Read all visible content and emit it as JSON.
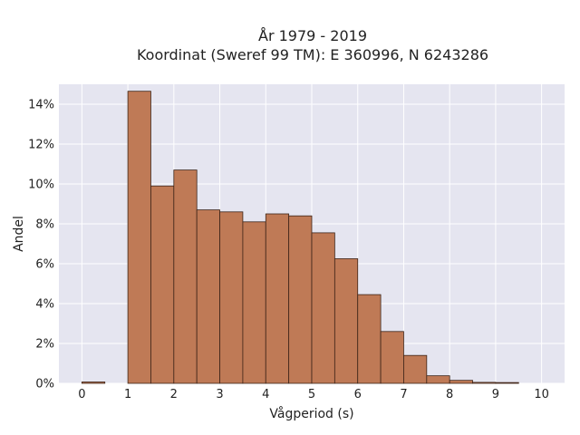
{
  "chart_data": {
    "type": "bar",
    "title_line1": "År 1979 - 2019",
    "title_line2": "Koordinat (Sweref 99 TM): E 360996, N 6243286",
    "xlabel": "Vågperiod (s)",
    "ylabel": "Andel",
    "x_ticks": [
      "0",
      "1",
      "2",
      "3",
      "4",
      "5",
      "6",
      "7",
      "8",
      "9",
      "10"
    ],
    "y_ticks": [
      "0%",
      "2%",
      "4%",
      "6%",
      "8%",
      "10%",
      "12%",
      "14%"
    ],
    "xlim": [
      -0.5,
      10.5
    ],
    "ylim": [
      0,
      15
    ],
    "bin_width": 0.5,
    "bins": [
      {
        "x0": 0.0,
        "value": 0.07
      },
      {
        "x0": 1.0,
        "value": 14.65
      },
      {
        "x0": 1.5,
        "value": 9.9
      },
      {
        "x0": 2.0,
        "value": 10.7
      },
      {
        "x0": 2.5,
        "value": 8.7
      },
      {
        "x0": 3.0,
        "value": 8.6
      },
      {
        "x0": 3.5,
        "value": 8.1
      },
      {
        "x0": 4.0,
        "value": 8.5
      },
      {
        "x0": 4.5,
        "value": 8.4
      },
      {
        "x0": 5.0,
        "value": 7.55
      },
      {
        "x0": 5.5,
        "value": 6.25
      },
      {
        "x0": 6.0,
        "value": 4.45
      },
      {
        "x0": 6.5,
        "value": 2.6
      },
      {
        "x0": 7.0,
        "value": 1.4
      },
      {
        "x0": 7.5,
        "value": 0.38
      },
      {
        "x0": 8.0,
        "value": 0.15
      },
      {
        "x0": 8.5,
        "value": 0.05
      },
      {
        "x0": 9.0,
        "value": 0.04
      }
    ],
    "grid": true,
    "colors": {
      "bar_fill": "#bf7a56",
      "bar_stroke": "#3d2418",
      "plot_background": "#e5e5f0",
      "grid": "#ffffff"
    }
  }
}
